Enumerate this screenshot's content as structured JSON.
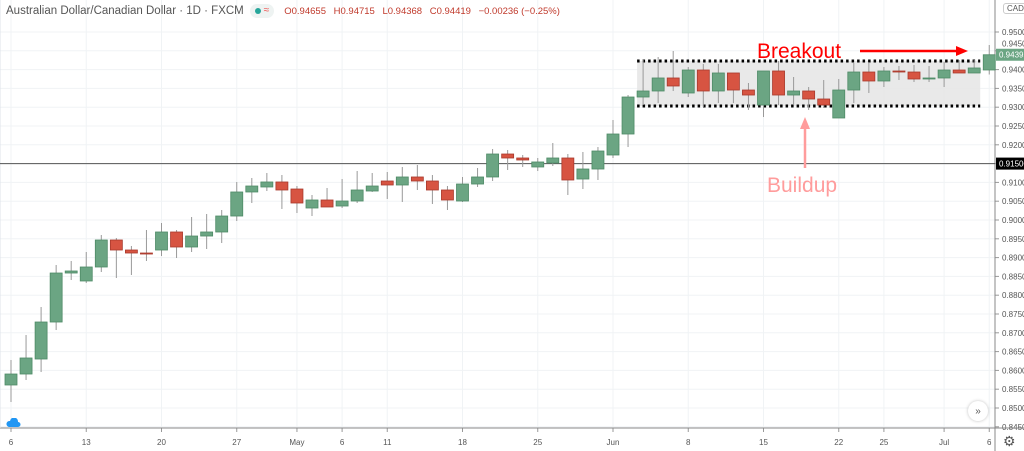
{
  "header": {
    "title": "Australian Dollar/Canadian Dollar · 1D · FXCM",
    "open": "O0.94655",
    "high": "H0.94715",
    "low": "L0.94368",
    "close": "C0.94419",
    "change": "−0.00236 (−0.25%)"
  },
  "currency_label": "CAD",
  "colors": {
    "up": "#6ba583",
    "down": "#d75442",
    "annotation": "#ff0000",
    "buildup": "#ff9c9c",
    "box": "#e5e5e5"
  },
  "chart_data": {
    "type": "candlestick",
    "ylim": [
      0.8425,
      0.9525
    ],
    "y_ticks": [
      "0.95000",
      "0.94500",
      "0.94000",
      "0.93500",
      "0.93000",
      "0.92500",
      "0.92000",
      "0.91500",
      "0.91000",
      "0.90500",
      "0.90000",
      "0.89500",
      "0.89000",
      "0.88500",
      "0.88000",
      "0.87500",
      "0.87000",
      "0.86500",
      "0.86000",
      "0.85500",
      "0.85000",
      "0.84500"
    ],
    "x_ticks": [
      {
        "label": "6",
        "index": 0
      },
      {
        "label": "13",
        "index": 5
      },
      {
        "label": "20",
        "index": 10
      },
      {
        "label": "27",
        "index": 15
      },
      {
        "label": "May",
        "index": 19
      },
      {
        "label": "6",
        "index": 22
      },
      {
        "label": "11",
        "index": 25
      },
      {
        "label": "18",
        "index": 30
      },
      {
        "label": "25",
        "index": 35
      },
      {
        "label": "Jun",
        "index": 40
      },
      {
        "label": "8",
        "index": 45
      },
      {
        "label": "15",
        "index": 50
      },
      {
        "label": "22",
        "index": 55
      },
      {
        "label": "25",
        "index": 58
      },
      {
        "label": "Jul",
        "index": 62
      },
      {
        "label": "6",
        "index": 65
      }
    ],
    "ohlc": [
      [
        0.85612,
        0.86277,
        0.8516,
        0.85904
      ],
      [
        0.85904,
        0.86941,
        0.85745,
        0.8633
      ],
      [
        0.86303,
        0.87686,
        0.85957,
        0.87287
      ],
      [
        0.87287,
        0.88803,
        0.87074,
        0.8859
      ],
      [
        0.8859,
        0.8891,
        0.88404,
        0.88644
      ],
      [
        0.88378,
        0.89149,
        0.88324,
        0.8875
      ],
      [
        0.8875,
        0.89601,
        0.88617,
        0.89468
      ],
      [
        0.89468,
        0.89521,
        0.88457,
        0.89202
      ],
      [
        0.89202,
        0.89309,
        0.88537,
        0.89122
      ],
      [
        0.89122,
        0.89734,
        0.8891,
        0.89096
      ],
      [
        0.89202,
        0.8992,
        0.89043,
        0.89681
      ],
      [
        0.89681,
        0.89734,
        0.88989,
        0.89282
      ],
      [
        0.89282,
        0.9008,
        0.89149,
        0.89574
      ],
      [
        0.89574,
        0.9016,
        0.89229,
        0.89681
      ],
      [
        0.89681,
        0.90266,
        0.89388,
        0.90106
      ],
      [
        0.90106,
        0.91011,
        0.89973,
        0.90745
      ],
      [
        0.90745,
        0.91117,
        0.90452,
        0.90904
      ],
      [
        0.90878,
        0.9125,
        0.90771,
        0.91011
      ],
      [
        0.91011,
        0.91197,
        0.90293,
        0.90798
      ],
      [
        0.90824,
        0.90904,
        0.90186,
        0.90452
      ],
      [
        0.90319,
        0.90665,
        0.90106,
        0.90532
      ],
      [
        0.90532,
        0.90851,
        0.90346,
        0.90346
      ],
      [
        0.90372,
        0.9109,
        0.90319,
        0.90505
      ],
      [
        0.90505,
        0.91303,
        0.90452,
        0.90798
      ],
      [
        0.90771,
        0.9125,
        0.90745,
        0.90904
      ],
      [
        0.91037,
        0.91277,
        0.90559,
        0.90931
      ],
      [
        0.90931,
        0.9141,
        0.90479,
        0.91144
      ],
      [
        0.91144,
        0.91463,
        0.90798,
        0.91037
      ],
      [
        0.91037,
        0.91197,
        0.90426,
        0.90798
      ],
      [
        0.90798,
        0.90904,
        0.90266,
        0.90532
      ],
      [
        0.90505,
        0.91144,
        0.90479,
        0.90957
      ],
      [
        0.90957,
        0.91383,
        0.90878,
        0.91144
      ],
      [
        0.91144,
        0.91888,
        0.91037,
        0.91755
      ],
      [
        0.91755,
        0.91862,
        0.9133,
        0.91649
      ],
      [
        0.91649,
        0.91729,
        0.9141,
        0.91596
      ],
      [
        0.9141,
        0.91649,
        0.91303,
        0.91543
      ],
      [
        0.91516,
        0.92048,
        0.91436,
        0.91649
      ],
      [
        0.91649,
        0.91755,
        0.90665,
        0.91064
      ],
      [
        0.9109,
        0.91809,
        0.90824,
        0.91356
      ],
      [
        0.91356,
        0.91941,
        0.91064,
        0.91835
      ],
      [
        0.91729,
        0.9266,
        0.91649,
        0.92287
      ],
      [
        0.92287,
        0.93324,
        0.91941,
        0.93271
      ],
      [
        0.93271,
        0.94282,
        0.93059,
        0.93431
      ],
      [
        0.93431,
        0.94335,
        0.93112,
        0.93777
      ],
      [
        0.93777,
        0.94495,
        0.93431,
        0.93564
      ],
      [
        0.93378,
        0.94069,
        0.93271,
        0.93989
      ],
      [
        0.93989,
        0.94149,
        0.93005,
        0.93431
      ],
      [
        0.93431,
        0.94149,
        0.93112,
        0.9391
      ],
      [
        0.9391,
        0.9391,
        0.93112,
        0.93457
      ],
      [
        0.93457,
        0.93644,
        0.92926,
        0.93324
      ],
      [
        0.93059,
        0.93963,
        0.92739,
        0.93963
      ],
      [
        0.93963,
        0.94229,
        0.93059,
        0.93324
      ],
      [
        0.93324,
        0.93803,
        0.93059,
        0.93431
      ],
      [
        0.93431,
        0.93537,
        0.92926,
        0.93218
      ],
      [
        0.93218,
        0.93723,
        0.92979,
        0.93059
      ],
      [
        0.92713,
        0.9375,
        0.92713,
        0.93457
      ],
      [
        0.93457,
        0.94176,
        0.93112,
        0.93936
      ],
      [
        0.93936,
        0.94176,
        0.93378,
        0.93697
      ],
      [
        0.93697,
        0.94069,
        0.93537,
        0.93963
      ],
      [
        0.93963,
        0.94096,
        0.93723,
        0.93936
      ],
      [
        0.93936,
        0.94122,
        0.9367,
        0.9375
      ],
      [
        0.9375,
        0.94096,
        0.9367,
        0.93777
      ],
      [
        0.93777,
        0.94202,
        0.93537,
        0.93989
      ],
      [
        0.93989,
        0.94255,
        0.9391,
        0.9391
      ],
      [
        0.9391,
        0.94255,
        0.9391,
        0.94043
      ],
      [
        0.9399,
        0.94654,
        0.9387,
        0.94395
      ]
    ],
    "horizontal_line": {
      "price": 0.915,
      "label": "0.91500"
    },
    "last_price_label": "0.94395",
    "annotations": {
      "box": {
        "from_index": 42,
        "to_index": 64,
        "top": 0.94229,
        "bottom": 0.93032
      },
      "breakout": "Breakout",
      "buildup": "Buildup"
    }
  }
}
